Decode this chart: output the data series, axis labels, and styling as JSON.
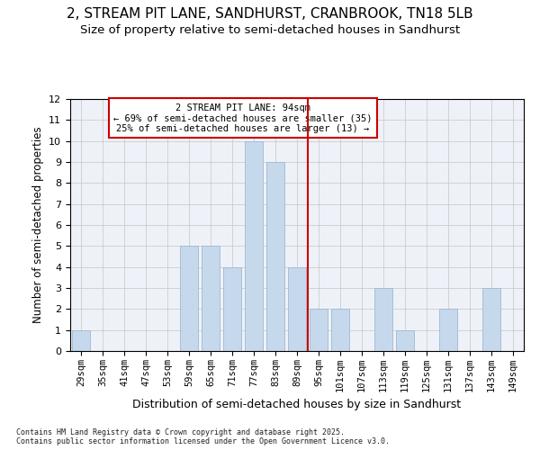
{
  "title_line1": "2, STREAM PIT LANE, SANDHURST, CRANBROOK, TN18 5LB",
  "title_line2": "Size of property relative to semi-detached houses in Sandhurst",
  "xlabel": "Distribution of semi-detached houses by size in Sandhurst",
  "ylabel": "Number of semi-detached properties",
  "categories": [
    "29sqm",
    "35sqm",
    "41sqm",
    "47sqm",
    "53sqm",
    "59sqm",
    "65sqm",
    "71sqm",
    "77sqm",
    "83sqm",
    "89sqm",
    "95sqm",
    "101sqm",
    "107sqm",
    "113sqm",
    "119sqm",
    "125sqm",
    "131sqm",
    "137sqm",
    "143sqm",
    "149sqm"
  ],
  "values": [
    1,
    0,
    0,
    0,
    0,
    5,
    5,
    4,
    10,
    9,
    4,
    2,
    2,
    0,
    3,
    1,
    0,
    2,
    0,
    3,
    0
  ],
  "bar_color": "#c6d9ec",
  "bar_edge_color": "#a0b8d0",
  "vline_x": 10.5,
  "vline_color": "#cc0000",
  "annotation_text": "2 STREAM PIT LANE: 94sqm\n← 69% of semi-detached houses are smaller (35)\n25% of semi-detached houses are larger (13) →",
  "annotation_box_color": "#ffffff",
  "annotation_box_edge": "#cc0000",
  "ylim": [
    0,
    12
  ],
  "yticks": [
    0,
    1,
    2,
    3,
    4,
    5,
    6,
    7,
    8,
    9,
    10,
    11,
    12
  ],
  "grid_color": "#cccccc",
  "background_color": "#eef2f8",
  "footer": "Contains HM Land Registry data © Crown copyright and database right 2025.\nContains public sector information licensed under the Open Government Licence v3.0.",
  "title_fontsize": 11,
  "subtitle_fontsize": 9.5,
  "tick_fontsize": 7.5,
  "xlabel_fontsize": 9,
  "ylabel_fontsize": 8.5,
  "annot_fontsize": 7.5
}
